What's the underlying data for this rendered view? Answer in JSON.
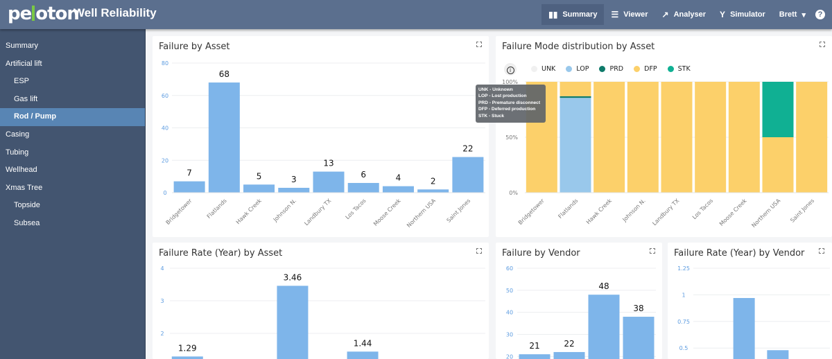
{
  "header": {
    "logo": "peloton",
    "app_title": "Well Reliability",
    "nav": [
      {
        "label": "Summary",
        "icon": "bar-chart-icon",
        "active": true
      },
      {
        "label": "Viewer",
        "icon": "list-icon"
      },
      {
        "label": "Analyser",
        "icon": "trend-icon"
      },
      {
        "label": "Simulator",
        "icon": "fork-icon"
      }
    ],
    "user": "Brett",
    "help_icon": "?"
  },
  "sidebar": {
    "items": [
      {
        "label": "Summary"
      },
      {
        "label": "Artificial lift"
      },
      {
        "label": "ESP",
        "sub": true
      },
      {
        "label": "Gas lift",
        "sub": true
      },
      {
        "label": "Rod / Pump",
        "sub": true,
        "active": true
      },
      {
        "label": "Casing"
      },
      {
        "label": "Tubing"
      },
      {
        "label": "Wellhead"
      },
      {
        "label": "Xmas Tree"
      },
      {
        "label": "Topside",
        "sub": true
      },
      {
        "label": "Subsea",
        "sub": true
      }
    ]
  },
  "panels": {
    "p1": "Failure by Asset",
    "p2": "Failure Mode distribution by Asset",
    "p3": "Failure Rate (Year) by Asset",
    "p4": "Failure by Vendor",
    "p5": "Failure Rate (Year) by Vendor"
  },
  "tooltip": [
    "UNK - Unknown",
    "LOP - Lost production",
    "PRD - Premature disconnect",
    "DFP - Deferred production",
    "STK - Stuck"
  ],
  "colors": {
    "bar": "#7eb5ea",
    "UNK": "#f0f0f0",
    "LOP": "#99c8eb",
    "PRD": "#0e7a6a",
    "DFP": "#fcd06a",
    "STK": "#10b093"
  },
  "chart_data": [
    {
      "type": "bar",
      "title": "Failure by Asset",
      "categories": [
        "Bridgetower",
        "Flatlands",
        "Hawk Creek",
        "Johnson N.",
        "Landbury TX",
        "Los Tacos",
        "Moose Creek",
        "Northern USA",
        "Saint Jones"
      ],
      "values": [
        7,
        68,
        5,
        3,
        13,
        6,
        4,
        2,
        22
      ],
      "ylim": [
        0,
        80
      ],
      "yticks": [
        "0",
        "20",
        "40",
        "60",
        "80"
      ],
      "grid": true
    },
    {
      "type": "bar",
      "stacked": true,
      "percent": true,
      "title": "Failure Mode distribution by Asset",
      "categories": [
        "Bridgetower",
        "Flatlands",
        "Hawk Creek",
        "Johnson N.",
        "Landbury TX",
        "Los Tacos",
        "Moose Creek",
        "Northern USA",
        "Saint Jones"
      ],
      "series": [
        {
          "name": "UNK",
          "values": [
            0,
            0,
            0,
            0,
            0,
            0,
            0,
            0,
            0
          ]
        },
        {
          "name": "LOP",
          "values": [
            0,
            85.5,
            0,
            0,
            0,
            0,
            0,
            0,
            0
          ]
        },
        {
          "name": "PRD",
          "values": [
            0,
            1.5,
            0,
            0,
            0,
            0,
            0,
            0,
            0
          ]
        },
        {
          "name": "DFP",
          "values": [
            100,
            13,
            100,
            100,
            100,
            100,
            100,
            50,
            100
          ]
        },
        {
          "name": "STK",
          "values": [
            0,
            0,
            0,
            0,
            0,
            0,
            0,
            50,
            0
          ]
        }
      ],
      "ylim": [
        0,
        100
      ],
      "yticks": [
        "0%",
        "50%",
        "100%"
      ],
      "legend": "top-left",
      "grid": true
    },
    {
      "type": "bar",
      "title": "Failure Rate (Year) by Asset",
      "categories": [
        "Bridgetower",
        "Flatlands",
        "Hawk Creek",
        "Johnson N.",
        "Landbury TX",
        "Los Tacos",
        "Moose Creek",
        "Northern USA",
        "Saint Jones"
      ],
      "values": [
        1.29,
        null,
        null,
        3.46,
        null,
        1.44,
        null,
        null,
        null
      ],
      "ylim": [
        0,
        4
      ],
      "yticks": [
        "2",
        "3",
        "4"
      ],
      "grid": true
    },
    {
      "type": "bar",
      "title": "Failure by Vendor",
      "values": [
        21,
        22,
        48,
        38
      ],
      "ylim": [
        0,
        60
      ],
      "yticks": [
        "20",
        "30",
        "40",
        "50",
        "60"
      ],
      "grid": true
    },
    {
      "type": "bar",
      "title": "Failure Rate (Year) by Vendor",
      "values": [
        null,
        0.97,
        0.48,
        null
      ],
      "ylim": [
        0,
        1.25
      ],
      "yticks": [
        "0.5",
        "0.75",
        "1",
        "1.25"
      ],
      "grid": true
    }
  ]
}
